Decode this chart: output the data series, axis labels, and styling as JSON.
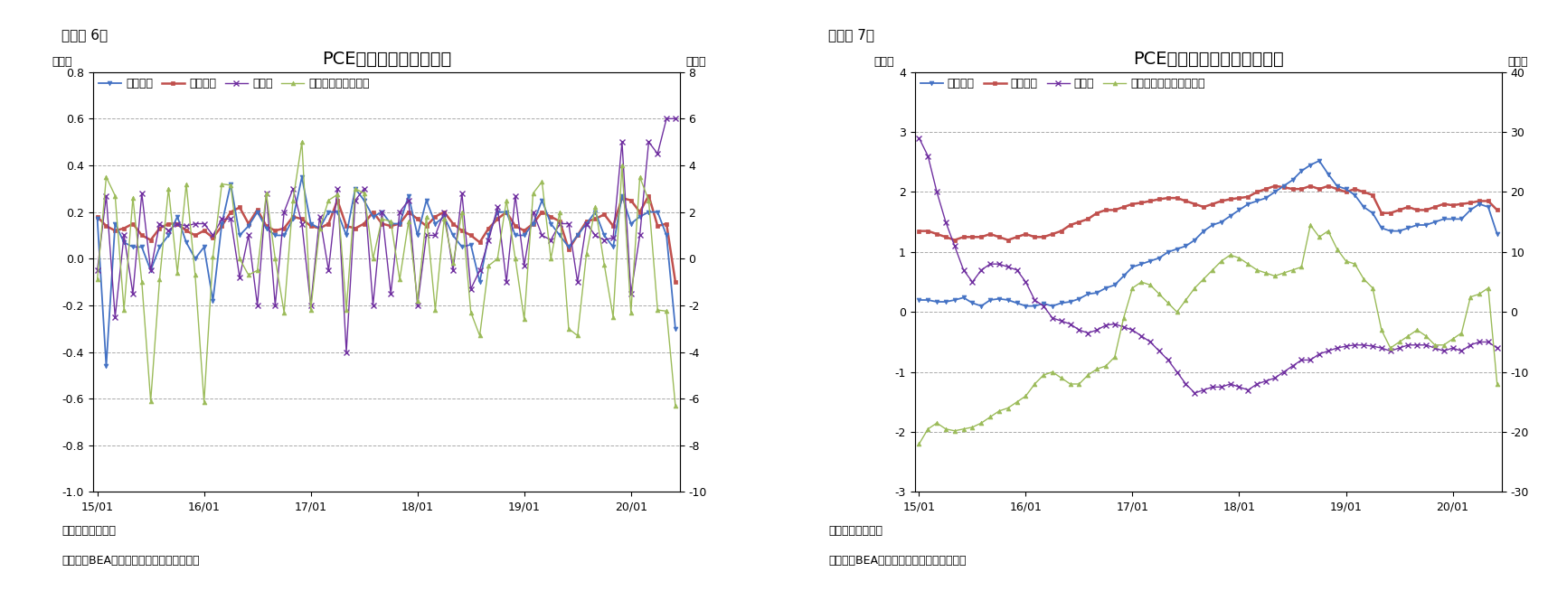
{
  "chart1": {
    "title": "PCE価格指数（前月比）",
    "label": "（図表 6）",
    "ylabel_left": "（％）",
    "ylabel_right": "（％）",
    "ylim_left": [
      -1.0,
      0.8
    ],
    "ylim_right": [
      -10,
      8
    ],
    "yticks_left": [
      -1.0,
      -0.8,
      -0.6,
      -0.4,
      -0.2,
      0.0,
      0.2,
      0.4,
      0.6,
      0.8
    ],
    "yticks_right": [
      -10,
      -8,
      -6,
      -4,
      -2,
      0,
      2,
      4,
      6,
      8
    ],
    "legend": [
      "総合指数",
      "コア指数",
      "食料品",
      "エネルギー（右軸）"
    ],
    "colors": [
      "#4472C4",
      "#C0504D",
      "#7030A0",
      "#9BBB59"
    ],
    "note1": "（注）季節調整済",
    "note2": "（資料）BEAよりニッセイ基礎研究所作成",
    "total": [
      0.17,
      -0.46,
      0.15,
      0.07,
      0.05,
      0.05,
      -0.05,
      0.05,
      0.1,
      0.18,
      0.07,
      0.0,
      0.05,
      -0.18,
      0.15,
      0.32,
      0.1,
      0.14,
      0.2,
      0.13,
      0.1,
      0.1,
      0.17,
      0.35,
      0.15,
      0.13,
      0.2,
      0.2,
      0.1,
      0.3,
      0.25,
      0.18,
      0.2,
      0.15,
      0.15,
      0.27,
      0.1,
      0.25,
      0.15,
      0.18,
      0.1,
      0.05,
      0.06,
      -0.1,
      0.1,
      0.2,
      0.2,
      0.1,
      0.1,
      0.15,
      0.25,
      0.15,
      0.1,
      0.05,
      0.1,
      0.15,
      0.2,
      0.1,
      0.05,
      0.27,
      0.15,
      0.18,
      0.2,
      0.2,
      0.1,
      -0.3
    ],
    "core": [
      0.18,
      0.14,
      0.12,
      0.13,
      0.15,
      0.1,
      0.08,
      0.13,
      0.15,
      0.15,
      0.12,
      0.1,
      0.12,
      0.09,
      0.14,
      0.2,
      0.22,
      0.15,
      0.21,
      0.14,
      0.12,
      0.13,
      0.18,
      0.17,
      0.14,
      0.13,
      0.15,
      0.25,
      0.14,
      0.13,
      0.15,
      0.2,
      0.15,
      0.14,
      0.15,
      0.2,
      0.17,
      0.14,
      0.18,
      0.2,
      0.15,
      0.12,
      0.1,
      0.07,
      0.13,
      0.17,
      0.2,
      0.14,
      0.12,
      0.15,
      0.2,
      0.18,
      0.16,
      0.04,
      0.1,
      0.16,
      0.17,
      0.19,
      0.14,
      0.26,
      0.25,
      0.2,
      0.27,
      0.14,
      0.15,
      -0.1
    ],
    "food": [
      -0.05,
      0.27,
      -0.25,
      0.1,
      -0.15,
      0.28,
      -0.05,
      0.15,
      0.12,
      0.15,
      0.14,
      0.15,
      0.15,
      0.1,
      0.17,
      0.17,
      -0.08,
      0.1,
      -0.2,
      0.28,
      -0.2,
      0.2,
      0.3,
      0.15,
      -0.2,
      0.18,
      -0.05,
      0.3,
      -0.4,
      0.25,
      0.3,
      -0.2,
      0.2,
      -0.15,
      0.2,
      0.25,
      -0.2,
      0.1,
      0.1,
      0.2,
      -0.05,
      0.28,
      -0.13,
      -0.05,
      0.08,
      0.22,
      -0.1,
      0.27,
      -0.03,
      0.2,
      0.1,
      0.08,
      0.15,
      0.15,
      -0.1,
      0.15,
      0.1,
      0.08,
      0.09,
      0.5,
      -0.15,
      0.1,
      0.5,
      0.45,
      0.6,
      0.6
    ],
    "energy": [
      -0.9,
      3.5,
      2.7,
      -2.2,
      2.6,
      -1.0,
      -6.1,
      -0.9,
      3.0,
      -0.6,
      3.2,
      -0.7,
      -6.15,
      0.1,
      3.2,
      3.15,
      0.0,
      -0.7,
      -0.5,
      2.8,
      0.0,
      -2.3,
      2.5,
      5.0,
      -2.2,
      1.3,
      2.5,
      2.75,
      -2.2,
      3.0,
      2.8,
      0.0,
      1.7,
      1.6,
      -0.9,
      1.6,
      -1.8,
      1.8,
      -2.2,
      1.7,
      -0.2,
      2.0,
      -2.3,
      -3.3,
      -0.3,
      0.0,
      2.5,
      0.0,
      -2.6,
      2.8,
      3.3,
      0.0,
      2.0,
      -3.0,
      -3.3,
      0.2,
      2.2,
      -0.25,
      -2.5,
      4.0,
      -2.3,
      3.5,
      2.5,
      -2.2,
      -2.25,
      -6.3
    ],
    "xtick_positions": [
      0,
      12,
      24,
      36,
      48,
      60
    ],
    "xtick_labels": [
      "15/01",
      "16/01",
      "17/01",
      "18/01",
      "19/01",
      "20/01"
    ]
  },
  "chart2": {
    "title": "PCE価格指数（前年同月比）",
    "label": "（図表 7）",
    "ylabel_left": "（％）",
    "ylabel_right": "（％）",
    "ylim_left": [
      -3,
      4
    ],
    "ylim_right": [
      -30,
      40
    ],
    "yticks_left": [
      -3,
      -2,
      -1,
      0,
      1,
      2,
      3,
      4
    ],
    "yticks_right": [
      -30,
      -20,
      -10,
      0,
      10,
      20,
      30,
      40
    ],
    "legend": [
      "総合指数",
      "コア指数",
      "食料品",
      "エネルギー関連（右軸）"
    ],
    "colors": [
      "#4472C4",
      "#C0504D",
      "#7030A0",
      "#9BBB59"
    ],
    "note1": "（注）季節調整済",
    "note2": "（資料）BEAよりニッセイ基礎研究所作成",
    "total": [
      0.2,
      0.2,
      0.17,
      0.17,
      0.2,
      0.24,
      0.15,
      0.1,
      0.2,
      0.22,
      0.2,
      0.15,
      0.1,
      0.1,
      0.14,
      0.1,
      0.15,
      0.17,
      0.22,
      0.3,
      0.32,
      0.4,
      0.45,
      0.6,
      0.75,
      0.8,
      0.85,
      0.9,
      1.0,
      1.05,
      1.1,
      1.2,
      1.35,
      1.45,
      1.5,
      1.6,
      1.7,
      1.8,
      1.85,
      1.9,
      2.0,
      2.1,
      2.2,
      2.35,
      2.45,
      2.52,
      2.3,
      2.1,
      2.05,
      1.95,
      1.75,
      1.65,
      1.4,
      1.35,
      1.35,
      1.4,
      1.45,
      1.45,
      1.5,
      1.55,
      1.55,
      1.55,
      1.7,
      1.8,
      1.75,
      1.3
    ],
    "core": [
      1.35,
      1.35,
      1.3,
      1.25,
      1.2,
      1.25,
      1.25,
      1.25,
      1.3,
      1.25,
      1.2,
      1.25,
      1.3,
      1.25,
      1.25,
      1.3,
      1.35,
      1.45,
      1.5,
      1.55,
      1.65,
      1.7,
      1.7,
      1.75,
      1.8,
      1.82,
      1.85,
      1.88,
      1.9,
      1.9,
      1.85,
      1.8,
      1.75,
      1.8,
      1.85,
      1.88,
      1.9,
      1.92,
      2.0,
      2.05,
      2.1,
      2.08,
      2.05,
      2.05,
      2.1,
      2.05,
      2.1,
      2.05,
      2.0,
      2.05,
      2.0,
      1.95,
      1.65,
      1.65,
      1.7,
      1.75,
      1.7,
      1.7,
      1.75,
      1.8,
      1.78,
      1.8,
      1.82,
      1.85,
      1.85,
      1.7
    ],
    "food": [
      2.9,
      2.6,
      2.0,
      1.5,
      1.1,
      0.7,
      0.5,
      0.7,
      0.8,
      0.8,
      0.75,
      0.7,
      0.5,
      0.2,
      0.1,
      -0.1,
      -0.15,
      -0.2,
      -0.3,
      -0.35,
      -0.3,
      -0.22,
      -0.2,
      -0.25,
      -0.3,
      -0.4,
      -0.5,
      -0.65,
      -0.8,
      -1.0,
      -1.2,
      -1.35,
      -1.3,
      -1.25,
      -1.25,
      -1.2,
      -1.25,
      -1.3,
      -1.2,
      -1.15,
      -1.1,
      -1.0,
      -0.9,
      -0.8,
      -0.8,
      -0.7,
      -0.65,
      -0.6,
      -0.57,
      -0.55,
      -0.55,
      -0.57,
      -0.6,
      -0.65,
      -0.6,
      -0.55,
      -0.55,
      -0.55,
      -0.6,
      -0.65,
      -0.6,
      -0.65,
      -0.55,
      -0.5,
      -0.5,
      -0.6
    ],
    "energy": [
      -22.0,
      -19.5,
      -18.5,
      -19.5,
      -19.8,
      -19.5,
      -19.2,
      -18.5,
      -17.5,
      -16.5,
      -16.0,
      -15.0,
      -14.0,
      -12.0,
      -10.5,
      -10.0,
      -11.0,
      -12.0,
      -12.0,
      -10.5,
      -9.5,
      -9.0,
      -7.5,
      -1.0,
      4.0,
      5.0,
      4.5,
      3.0,
      1.5,
      0.0,
      2.0,
      4.0,
      5.5,
      7.0,
      8.5,
      9.5,
      9.0,
      8.0,
      7.0,
      6.5,
      6.0,
      6.5,
      7.0,
      7.5,
      14.5,
      12.5,
      13.5,
      10.5,
      8.5,
      8.0,
      5.5,
      4.0,
      -3.0,
      -6.0,
      -5.0,
      -4.0,
      -3.0,
      -4.0,
      -5.5,
      -5.5,
      -4.5,
      -3.5,
      2.5,
      3.0,
      4.0,
      -12.0
    ],
    "xtick_positions": [
      0,
      12,
      24,
      36,
      48,
      60
    ],
    "xtick_labels": [
      "15/01",
      "16/01",
      "17/01",
      "18/01",
      "19/01",
      "20/01"
    ]
  },
  "background_color": "#FFFFFF",
  "grid_color": "#AAAAAA",
  "grid_style": "--",
  "fig_label_fontsize": 11,
  "title_fontsize": 14,
  "tick_fontsize": 9,
  "legend_fontsize": 9,
  "note_fontsize": 9
}
